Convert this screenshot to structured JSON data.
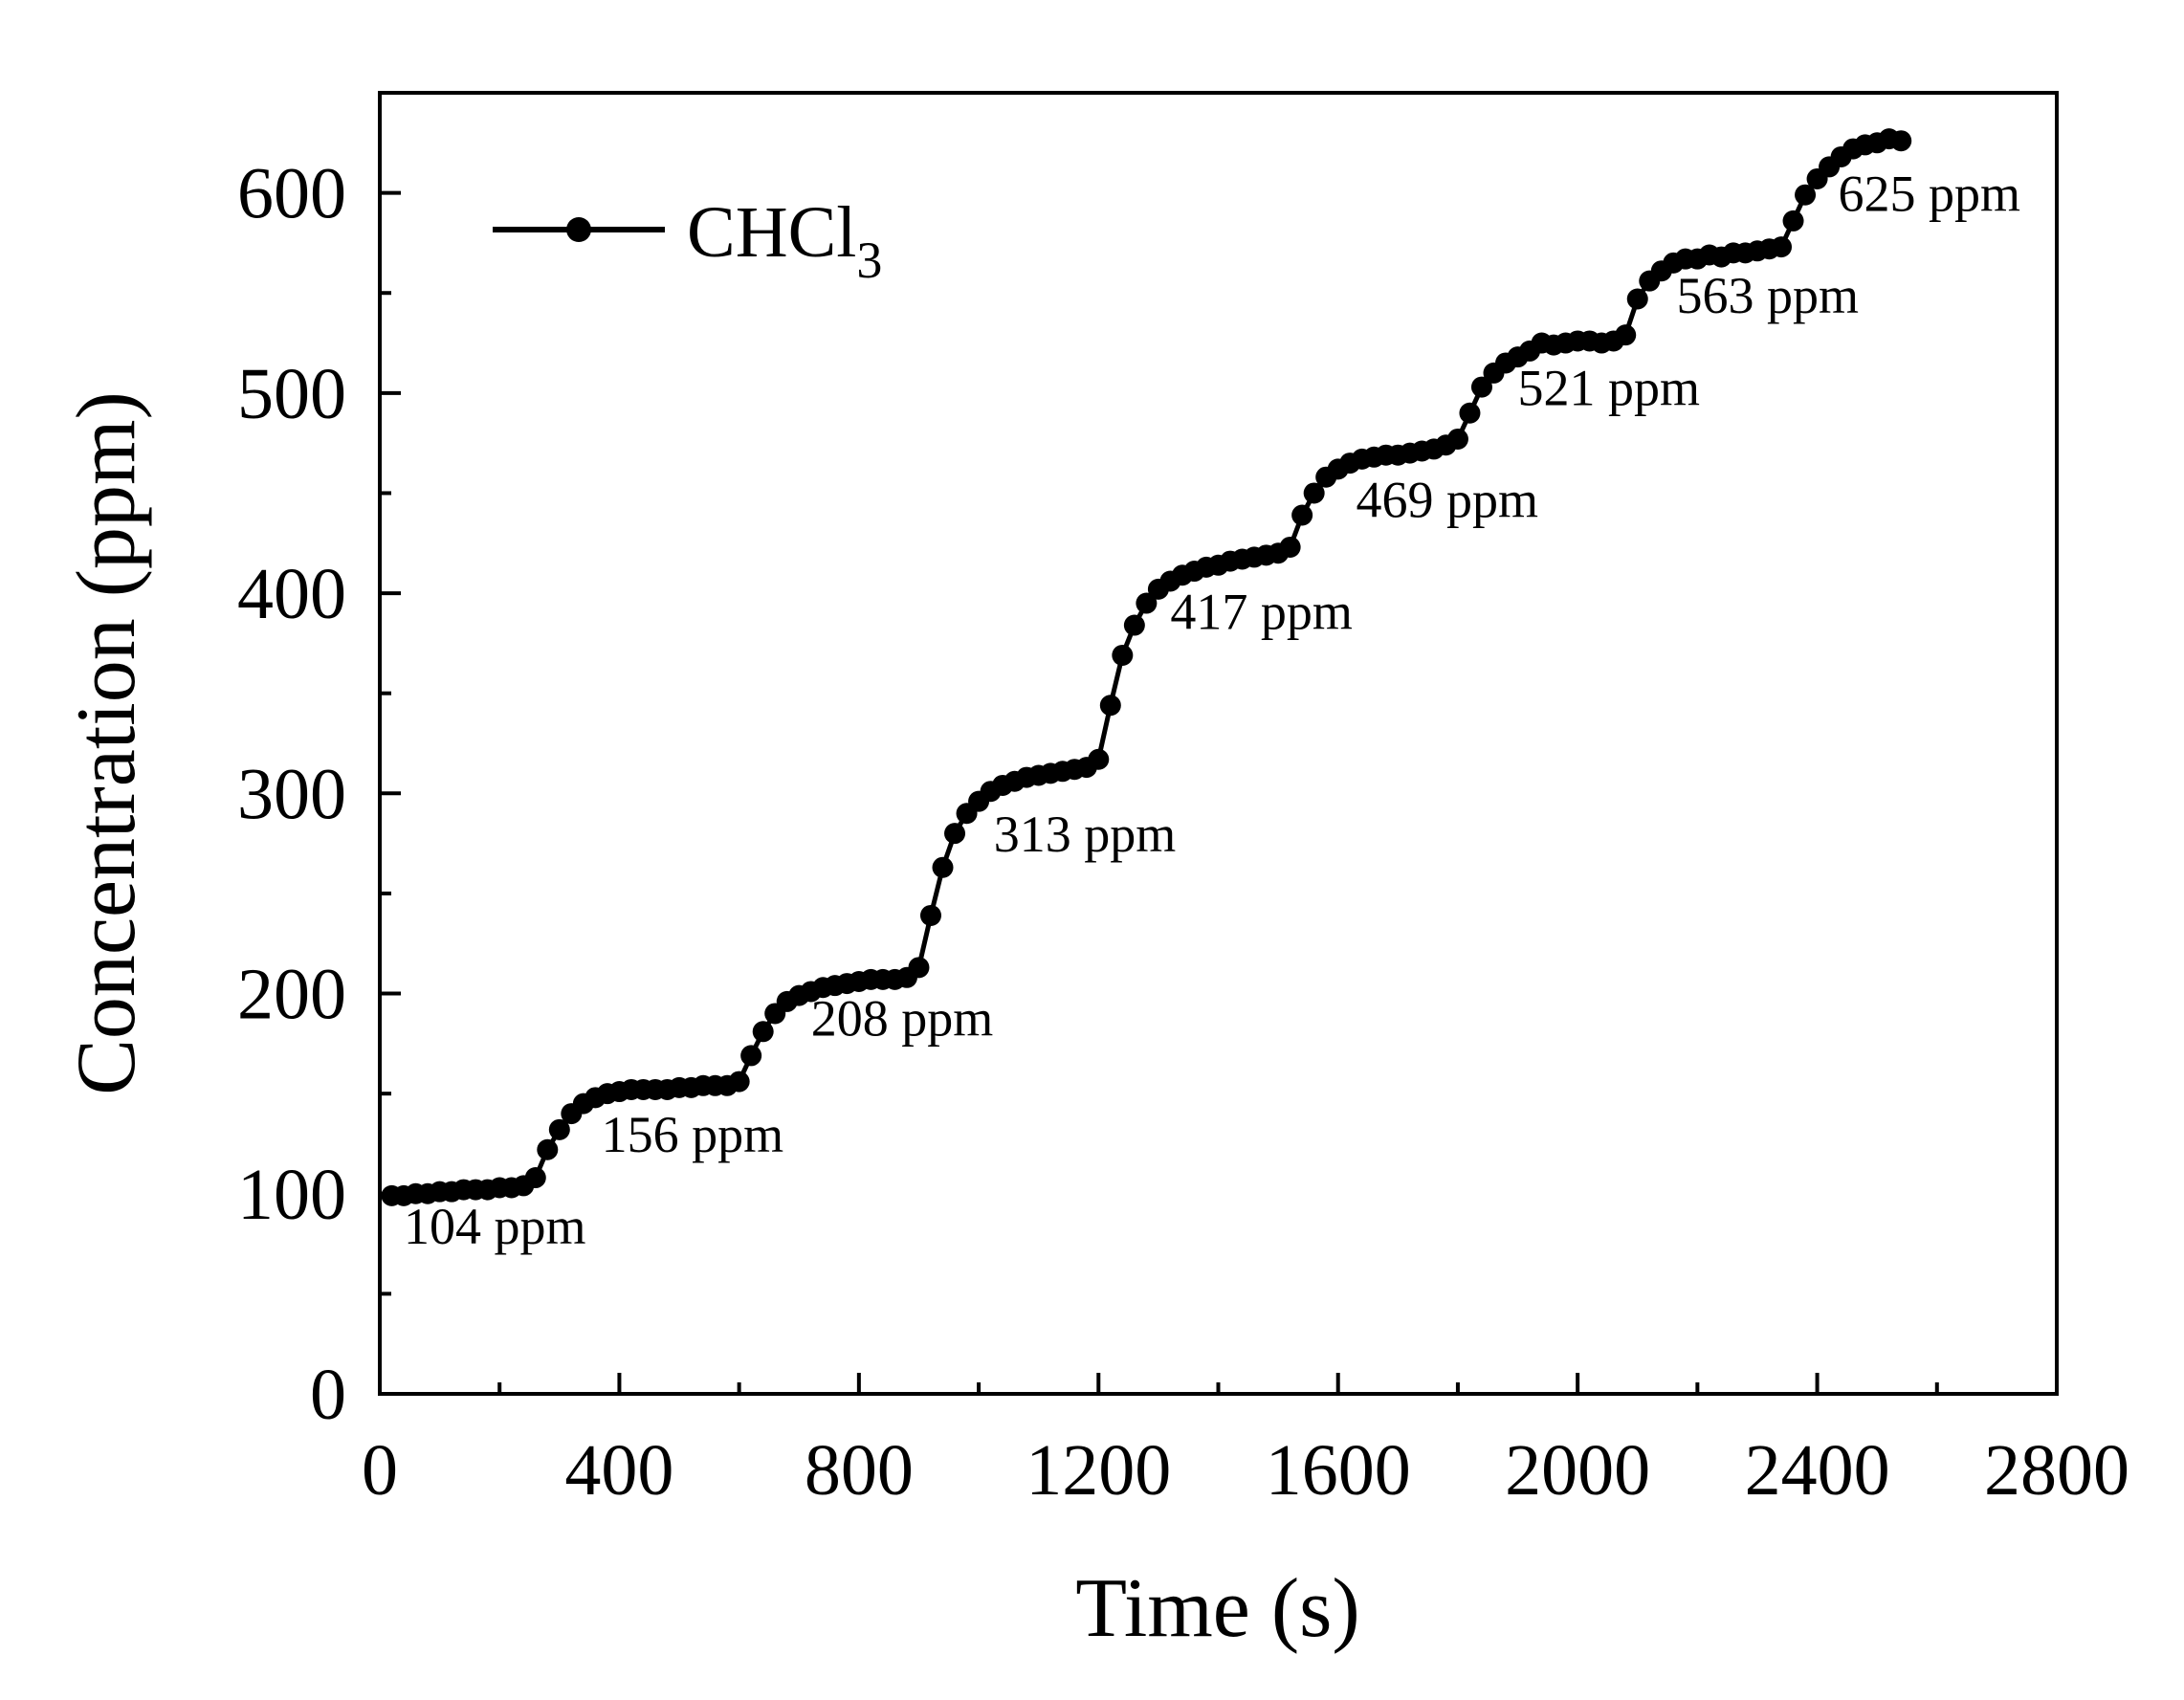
{
  "chart_data": {
    "type": "line",
    "title": "",
    "xlabel": "Time (s)",
    "ylabel": "Concentration (ppm)",
    "xlim": [
      0,
      2800
    ],
    "ylim": [
      0,
      650
    ],
    "xticks": [
      0,
      400,
      800,
      1200,
      1600,
      2000,
      2400,
      2800
    ],
    "yticks": [
      0,
      100,
      200,
      300,
      400,
      500,
      600
    ],
    "grid": false,
    "legend": {
      "position": "top-left",
      "label_main": "CHCl",
      "label_sub": "3"
    },
    "series": [
      {
        "name": "CHCl3",
        "color": "#000000",
        "marker": "circle",
        "x": [
          20,
          40,
          60,
          80,
          100,
          120,
          140,
          160,
          180,
          200,
          220,
          240,
          260,
          280,
          300,
          320,
          340,
          360,
          380,
          400,
          420,
          440,
          460,
          480,
          500,
          520,
          540,
          560,
          580,
          600,
          620,
          640,
          660,
          680,
          700,
          720,
          740,
          760,
          780,
          800,
          820,
          840,
          860,
          880,
          900,
          920,
          940,
          960,
          980,
          1000,
          1020,
          1040,
          1060,
          1080,
          1100,
          1120,
          1140,
          1160,
          1180,
          1200,
          1220,
          1240,
          1260,
          1280,
          1300,
          1320,
          1340,
          1360,
          1380,
          1400,
          1420,
          1440,
          1460,
          1480,
          1500,
          1520,
          1540,
          1560,
          1580,
          1600,
          1620,
          1640,
          1660,
          1680,
          1700,
          1720,
          1740,
          1760,
          1780,
          1800,
          1820,
          1840,
          1860,
          1880,
          1900,
          1920,
          1940,
          1960,
          1980,
          2000,
          2020,
          2040,
          2060,
          2080,
          2100,
          2120,
          2140,
          2160,
          2180,
          2200,
          2220,
          2240,
          2260,
          2280,
          2300,
          2320,
          2340,
          2360,
          2380,
          2400,
          2420,
          2440,
          2460,
          2480,
          2500,
          2520,
          2540
        ],
        "y": [
          99,
          99,
          100,
          100,
          101,
          101,
          102,
          102,
          102,
          103,
          103,
          104,
          108,
          122,
          132,
          140,
          145,
          148,
          150,
          151,
          152,
          152,
          152,
          152,
          153,
          153,
          154,
          154,
          154,
          156,
          169,
          181,
          190,
          196,
          199,
          201,
          203,
          204,
          205,
          206,
          207,
          207,
          207,
          208,
          213,
          239,
          263,
          280,
          290,
          296,
          301,
          304,
          306,
          308,
          309,
          310,
          311,
          312,
          313,
          317,
          344,
          369,
          384,
          395,
          402,
          406,
          409,
          411,
          413,
          414,
          416,
          417,
          418,
          419,
          420,
          423,
          439,
          450,
          458,
          462,
          465,
          467,
          468,
          469,
          469,
          470,
          471,
          472,
          474,
          477,
          490,
          503,
          510,
          515,
          518,
          521,
          525,
          524,
          525,
          526,
          526,
          525,
          526,
          529,
          547,
          556,
          561,
          565,
          567,
          567,
          569,
          568,
          570,
          570,
          571,
          572,
          573,
          586,
          599,
          607,
          613,
          618,
          622,
          624,
          625,
          627,
          626
        ]
      }
    ],
    "annotations": [
      {
        "text": "104 ppm",
        "x": 40,
        "y": 75
      },
      {
        "text": "156 ppm",
        "x": 370,
        "y": 121
      },
      {
        "text": "208 ppm",
        "x": 720,
        "y": 179
      },
      {
        "text": "313 ppm",
        "x": 1025,
        "y": 271
      },
      {
        "text": "417 ppm",
        "x": 1320,
        "y": 382
      },
      {
        "text": "469 ppm",
        "x": 1630,
        "y": 438
      },
      {
        "text": "521 ppm",
        "x": 1900,
        "y": 494
      },
      {
        "text": "563 ppm",
        "x": 2165,
        "y": 540
      },
      {
        "text": "625 ppm",
        "x": 2435,
        "y": 591
      }
    ]
  }
}
